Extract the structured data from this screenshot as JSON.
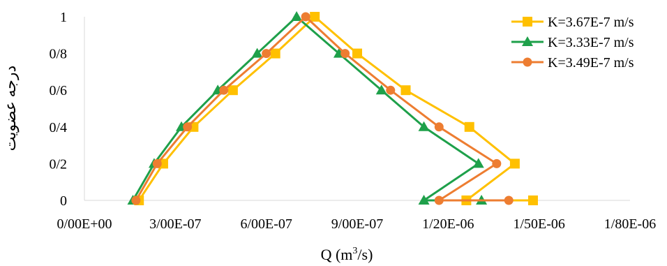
{
  "chart_data": {
    "type": "line",
    "xlabel": "Q (m",
    "xlabel_sup": "3",
    "xlabel_tail": "/s)",
    "ylabel": "درجه عضویت",
    "xlim": [
      0,
      1.8e-06
    ],
    "ylim": [
      0,
      1
    ],
    "x_tick_values": [
      0,
      3e-07,
      6e-07,
      9e-07,
      1.2e-06,
      1.5e-06,
      1.8e-06
    ],
    "x_ticks": [
      "0/00E+00",
      "3/00E-07",
      "6/00E-07",
      "9/00E-07",
      "1/20E-06",
      "1/50E-06",
      "1/80E-06"
    ],
    "y_tick_values": [
      0,
      0.2,
      0.4,
      0.6,
      0.8,
      1
    ],
    "y_ticks": [
      "0",
      "0/2",
      "0/4",
      "0/6",
      "0/8",
      "1"
    ],
    "grid": false,
    "legend_position": "top-right",
    "series": [
      {
        "name": "K=3.67E-7 m/s",
        "color": "#FFC000",
        "marker": "square",
        "x": [
          1.8e-07,
          2.6e-07,
          3.6e-07,
          4.9e-07,
          6.3e-07,
          7.6e-07,
          9e-07,
          1.06e-06,
          1.27e-06,
          1.42e-06,
          1.26e-06,
          1.48e-06
        ],
        "y": [
          0,
          0.2,
          0.4,
          0.6,
          0.8,
          1,
          0.8,
          0.6,
          0.4,
          0.2,
          0,
          0
        ]
      },
      {
        "name": "K=3.33E-7 m/s",
        "color": "#1EA04A",
        "marker": "triangle",
        "x": [
          1.6e-07,
          2.3e-07,
          3.2e-07,
          4.4e-07,
          5.7e-07,
          7e-07,
          8.4e-07,
          9.8e-07,
          1.12e-06,
          1.3e-06,
          1.12e-06,
          1.31e-06
        ],
        "y": [
          0,
          0.2,
          0.4,
          0.6,
          0.8,
          1,
          0.8,
          0.6,
          0.4,
          0.2,
          0,
          0
        ]
      },
      {
        "name": "K=3.49E-7 m/s",
        "color": "#ED7D31",
        "marker": "circle",
        "x": [
          1.7e-07,
          2.4e-07,
          3.4e-07,
          4.6e-07,
          6e-07,
          7.3e-07,
          8.6e-07,
          1.01e-06,
          1.17e-06,
          1.36e-06,
          1.17e-06,
          1.4e-06
        ],
        "y": [
          0,
          0.2,
          0.4,
          0.6,
          0.8,
          1,
          0.8,
          0.6,
          0.4,
          0.2,
          0,
          0
        ]
      }
    ]
  }
}
